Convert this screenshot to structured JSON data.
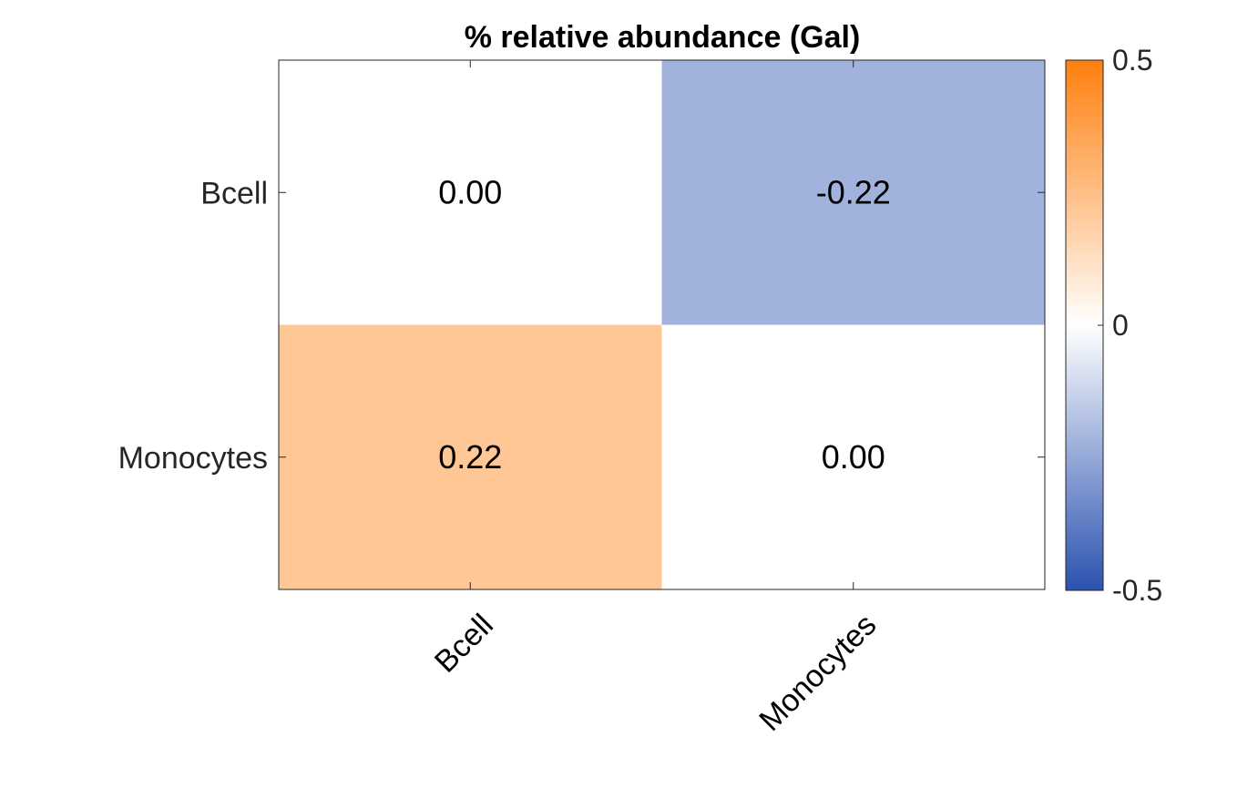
{
  "chart_data": {
    "type": "heatmap",
    "title": "% relative abundance (Gal)",
    "rows": [
      "Bcell",
      "Monocytes"
    ],
    "columns": [
      "Bcell",
      "Monocytes"
    ],
    "values": [
      [
        0.0,
        -0.22
      ],
      [
        0.22,
        0.0
      ]
    ],
    "value_labels": [
      [
        "0.00",
        "-0.22"
      ],
      [
        "0.22",
        "0.00"
      ]
    ],
    "colorbar": {
      "range": [
        -0.5,
        0.5
      ],
      "ticks": [
        0.5,
        0,
        -0.5
      ],
      "tick_labels": [
        "0.5",
        "0",
        "-0.5"
      ],
      "low_color": "#2a52b0",
      "mid_color": "#ffffff",
      "high_color": "#ff7f0e"
    }
  }
}
